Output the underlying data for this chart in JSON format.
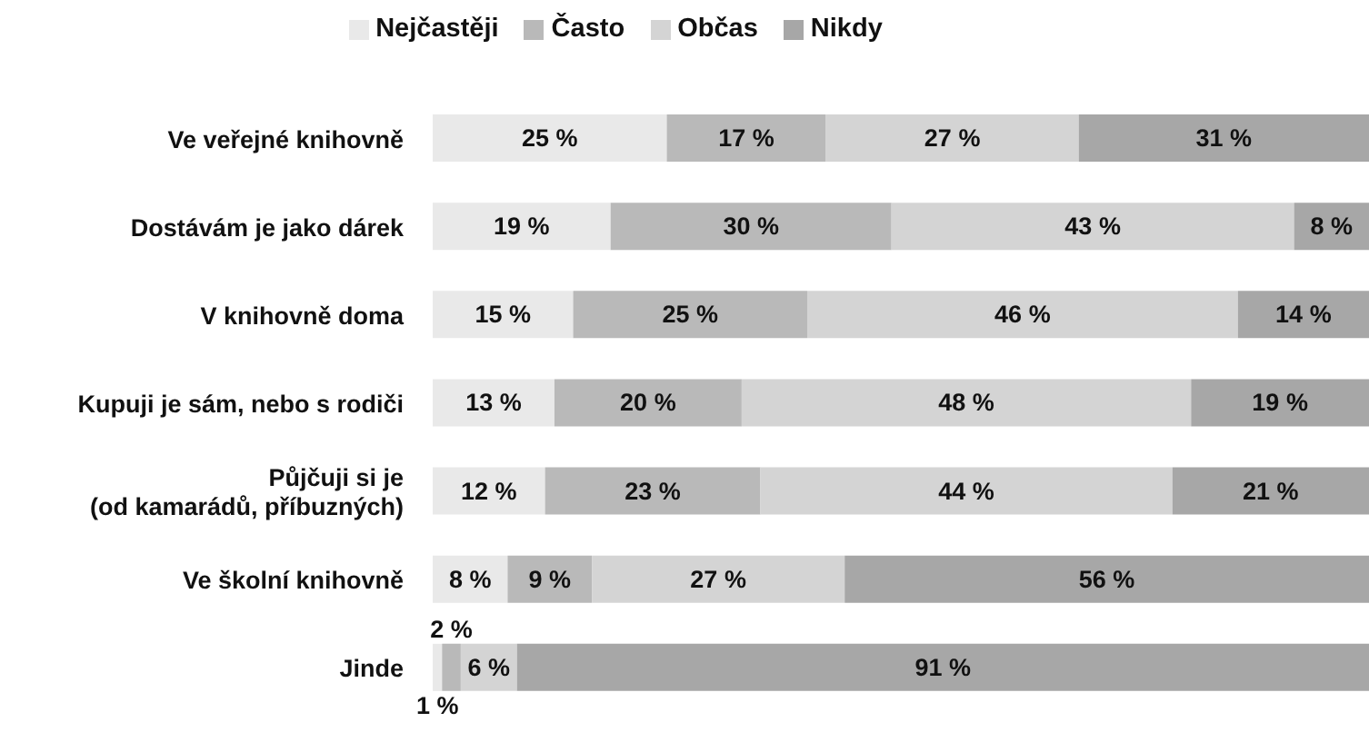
{
  "chart_data": {
    "type": "bar",
    "orientation": "horizontal",
    "stacked": true,
    "legend": "top",
    "categories": [
      "Ve veřejné knihovně",
      "Dostávám je jako dárek",
      "V knihovně doma",
      "Kupuji je sám, nebo s rodiči",
      "Půjčuji si je\n(od kamarádů, příbuzných)",
      "Ve školní knihovně",
      "Jinde"
    ],
    "series": [
      {
        "name": "Nejčastěji",
        "color": "#e9e9e9",
        "values": [
          25,
          19,
          15,
          13,
          12,
          8,
          1
        ],
        "value_labels": [
          "25 %",
          "19 %",
          "15 %",
          "13 %",
          "12 %",
          "8 %",
          "1 %"
        ]
      },
      {
        "name": "Často",
        "color": "#b9b9b9",
        "values": [
          17,
          30,
          25,
          20,
          23,
          9,
          2
        ],
        "value_labels": [
          "17 %",
          "30 %",
          "25 %",
          "20 %",
          "23 %",
          "9 %",
          "2 %"
        ]
      },
      {
        "name": "Občas",
        "color": "#d4d4d4",
        "values": [
          27,
          43,
          46,
          48,
          44,
          27,
          6
        ],
        "value_labels": [
          "27 %",
          "43 %",
          "46 %",
          "48 %",
          "44 %",
          "27 %",
          "6 %"
        ]
      },
      {
        "name": "Nikdy",
        "color": "#a7a7a7",
        "values": [
          31,
          8,
          14,
          19,
          21,
          56,
          91
        ],
        "value_labels": [
          "31 %",
          "8 %",
          "14 %",
          "19 %",
          "21 %",
          "56 %",
          "91 %"
        ]
      }
    ]
  }
}
